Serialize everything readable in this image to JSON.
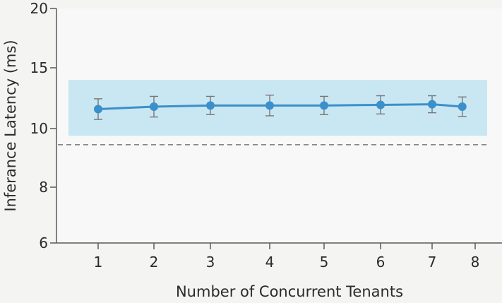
{
  "chart_data": {
    "type": "line",
    "title": "",
    "xlabel": "Number of Concurrent Tenants",
    "ylabel": "Inferance Latency (ms)",
    "x": [
      1,
      2,
      3,
      4,
      5,
      6,
      7,
      7.7
    ],
    "y_ticks": [
      6,
      8,
      10,
      15,
      20
    ],
    "x_ticks": [
      1,
      2,
      3,
      4,
      5,
      6,
      7,
      8
    ],
    "series": [
      {
        "values": [
          11.6,
          11.8,
          11.9,
          11.9,
          11.9,
          11.95,
          12.0,
          11.8
        ],
        "err": [
          0.85,
          0.85,
          0.75,
          0.85,
          0.75,
          0.75,
          0.7,
          0.8
        ]
      }
    ],
    "band": {
      "low": 9.75,
      "high": 14.0
    },
    "reference_line": 9.45,
    "grid": false,
    "colors": {
      "line": "#3b8fca",
      "band": "#c9e7f2",
      "error_bar": "#777777",
      "reference": "#777777",
      "axis": "#5a5a5a"
    }
  }
}
